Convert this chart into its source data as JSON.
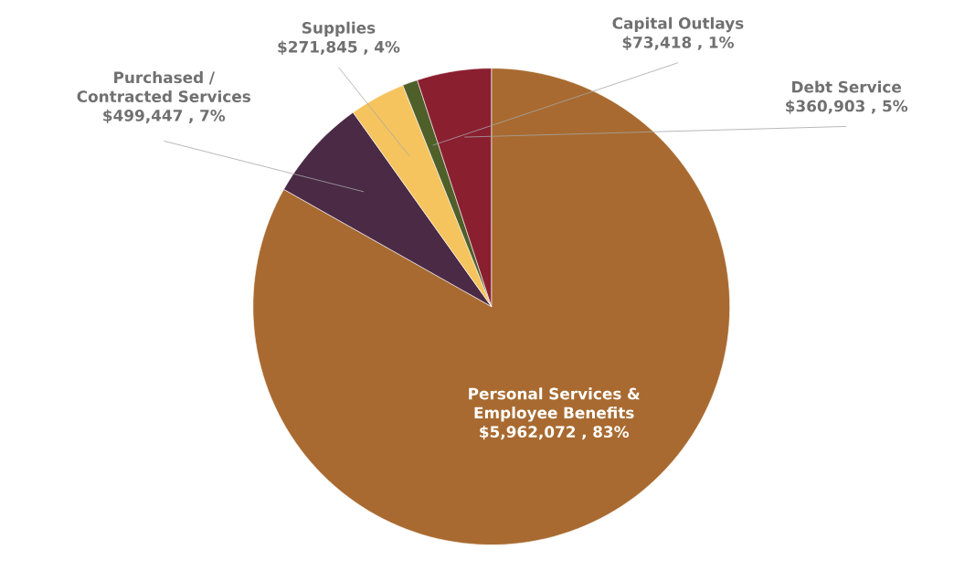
{
  "chart_data": {
    "type": "pie",
    "categories": [
      "Personal Services & Employee Benefits",
      "Purchased / Contracted Services",
      "Supplies",
      "Capital Outlays",
      "Debt Service"
    ],
    "values": [
      5962072,
      499447,
      271845,
      73418,
      360903
    ],
    "value_labels": [
      "$5,962,072 , 83%",
      "$499,447 , 7%",
      "$271,845 , 4%",
      "$73,418 , 1%",
      "$360,903 , 5%"
    ],
    "colors": [
      "#a86a30",
      "#4a2a45",
      "#f5c45e",
      "#4f5f2a",
      "#8a1f30"
    ]
  }
}
